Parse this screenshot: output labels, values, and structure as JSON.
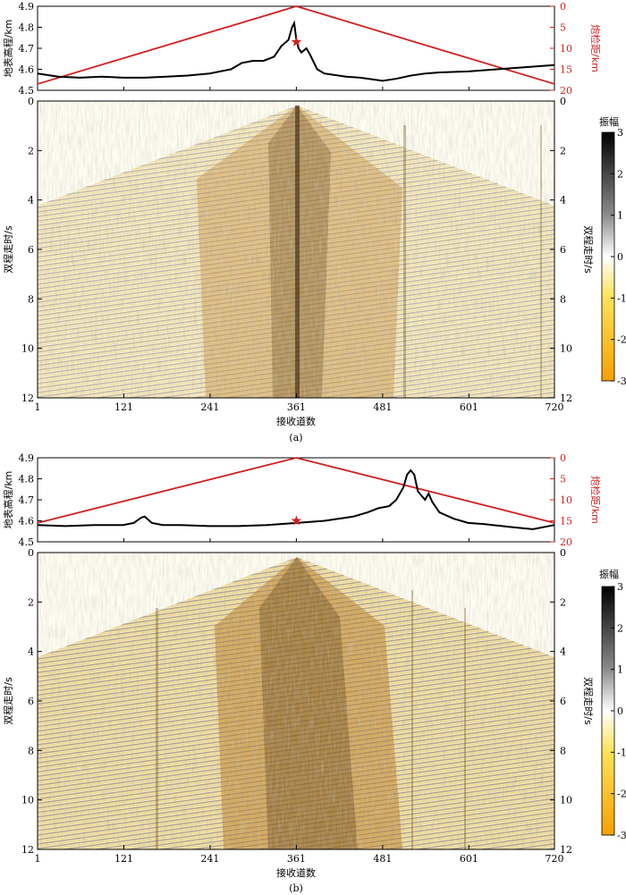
{
  "chart_data": [
    {
      "panel_label": "(a)",
      "type": "line",
      "title": "",
      "xlabel": "接收道数",
      "ylabel_left": "地表高程/km",
      "ylabel_right": "炮检距/km",
      "ylabel_seismic_left": "双程走时/s",
      "ylabel_seismic_right": "双程走时/s",
      "x_ticks": [
        1,
        121,
        241,
        361,
        481,
        601,
        720
      ],
      "x_range": [
        1,
        720
      ],
      "elev_ticks": [
        "4.9",
        "4.8",
        "4.7",
        "4.6",
        "4.5"
      ],
      "elev_range": [
        4.5,
        4.9
      ],
      "offset_ticks": [
        "0",
        "5",
        "10",
        "15",
        "20"
      ],
      "offset_range": [
        0,
        20
      ],
      "time_ticks": [
        "0",
        "2",
        "4",
        "6",
        "8",
        "10",
        "12"
      ],
      "time_range": [
        0,
        12
      ],
      "source_trace": 361,
      "source_elev": 4.73,
      "elevation": {
        "trace": [
          1,
          30,
          60,
          90,
          120,
          150,
          180,
          210,
          240,
          270,
          285,
          300,
          315,
          330,
          340,
          350,
          355,
          358,
          361,
          364,
          368,
          375,
          380,
          390,
          400,
          410,
          430,
          450,
          481,
          500,
          520,
          540,
          560,
          600,
          640,
          680,
          720
        ],
        "km": [
          4.58,
          4.565,
          4.56,
          4.565,
          4.56,
          4.56,
          4.565,
          4.57,
          4.58,
          4.6,
          4.63,
          4.64,
          4.64,
          4.66,
          4.71,
          4.74,
          4.8,
          4.82,
          4.74,
          4.7,
          4.68,
          4.7,
          4.67,
          4.6,
          4.58,
          4.575,
          4.565,
          4.56,
          4.545,
          4.555,
          4.57,
          4.58,
          4.585,
          4.59,
          4.6,
          4.61,
          4.62
        ]
      },
      "offset_line": {
        "trace": [
          1,
          361,
          720
        ],
        "km": [
          18.5,
          0,
          18.5
        ]
      },
      "series_names": [
        "地表高程",
        "炮检距"
      ]
    },
    {
      "panel_label": "(b)",
      "type": "line",
      "title": "",
      "xlabel": "接收道数",
      "ylabel_left": "地表高程/km",
      "ylabel_right": "炮检距/km",
      "ylabel_seismic_left": "双程走时/s",
      "ylabel_seismic_right": "双程走时/s",
      "x_ticks": [
        1,
        121,
        241,
        361,
        481,
        601,
        720
      ],
      "x_range": [
        1,
        720
      ],
      "elev_ticks": [
        "4.9",
        "4.8",
        "4.7",
        "4.6",
        "4.5"
      ],
      "elev_range": [
        4.5,
        4.9
      ],
      "offset_ticks": [
        "0",
        "5",
        "10",
        "15",
        "20"
      ],
      "offset_range": [
        0,
        20
      ],
      "time_ticks": [
        "0",
        "2",
        "4",
        "6",
        "8",
        "10",
        "12"
      ],
      "time_range": [
        0,
        12
      ],
      "source_trace": 361,
      "source_elev": 4.6,
      "elevation": {
        "trace": [
          1,
          40,
          80,
          120,
          135,
          145,
          150,
          160,
          175,
          200,
          240,
          280,
          320,
          361,
          400,
          420,
          440,
          460,
          475,
          490,
          500,
          510,
          515,
          520,
          525,
          530,
          540,
          545,
          550,
          560,
          580,
          600,
          620,
          660,
          690,
          720
        ],
        "km": [
          4.58,
          4.575,
          4.58,
          4.58,
          4.59,
          4.615,
          4.62,
          4.59,
          4.58,
          4.58,
          4.575,
          4.575,
          4.58,
          4.59,
          4.6,
          4.61,
          4.62,
          4.64,
          4.66,
          4.67,
          4.7,
          4.76,
          4.82,
          4.84,
          4.82,
          4.74,
          4.7,
          4.73,
          4.69,
          4.64,
          4.61,
          4.59,
          4.585,
          4.57,
          4.56,
          4.58
        ]
      },
      "offset_line": {
        "trace": [
          1,
          361,
          720
        ],
        "km": [
          15.5,
          0,
          15.5
        ]
      },
      "series_names": [
        "地表高程",
        "炮检距"
      ]
    }
  ],
  "colorbar": {
    "title": "振幅",
    "ticks": [
      "3",
      "2",
      "1",
      "0",
      "-1",
      "-2",
      "-3"
    ],
    "range": [
      -3,
      3
    ]
  },
  "colors": {
    "elevation": "#000000",
    "offset": "#d11f1f",
    "source_star": "#d11f1f",
    "seis_pos": "#000000",
    "seis_neg": "#f2a100",
    "background": "#fffdf0"
  }
}
